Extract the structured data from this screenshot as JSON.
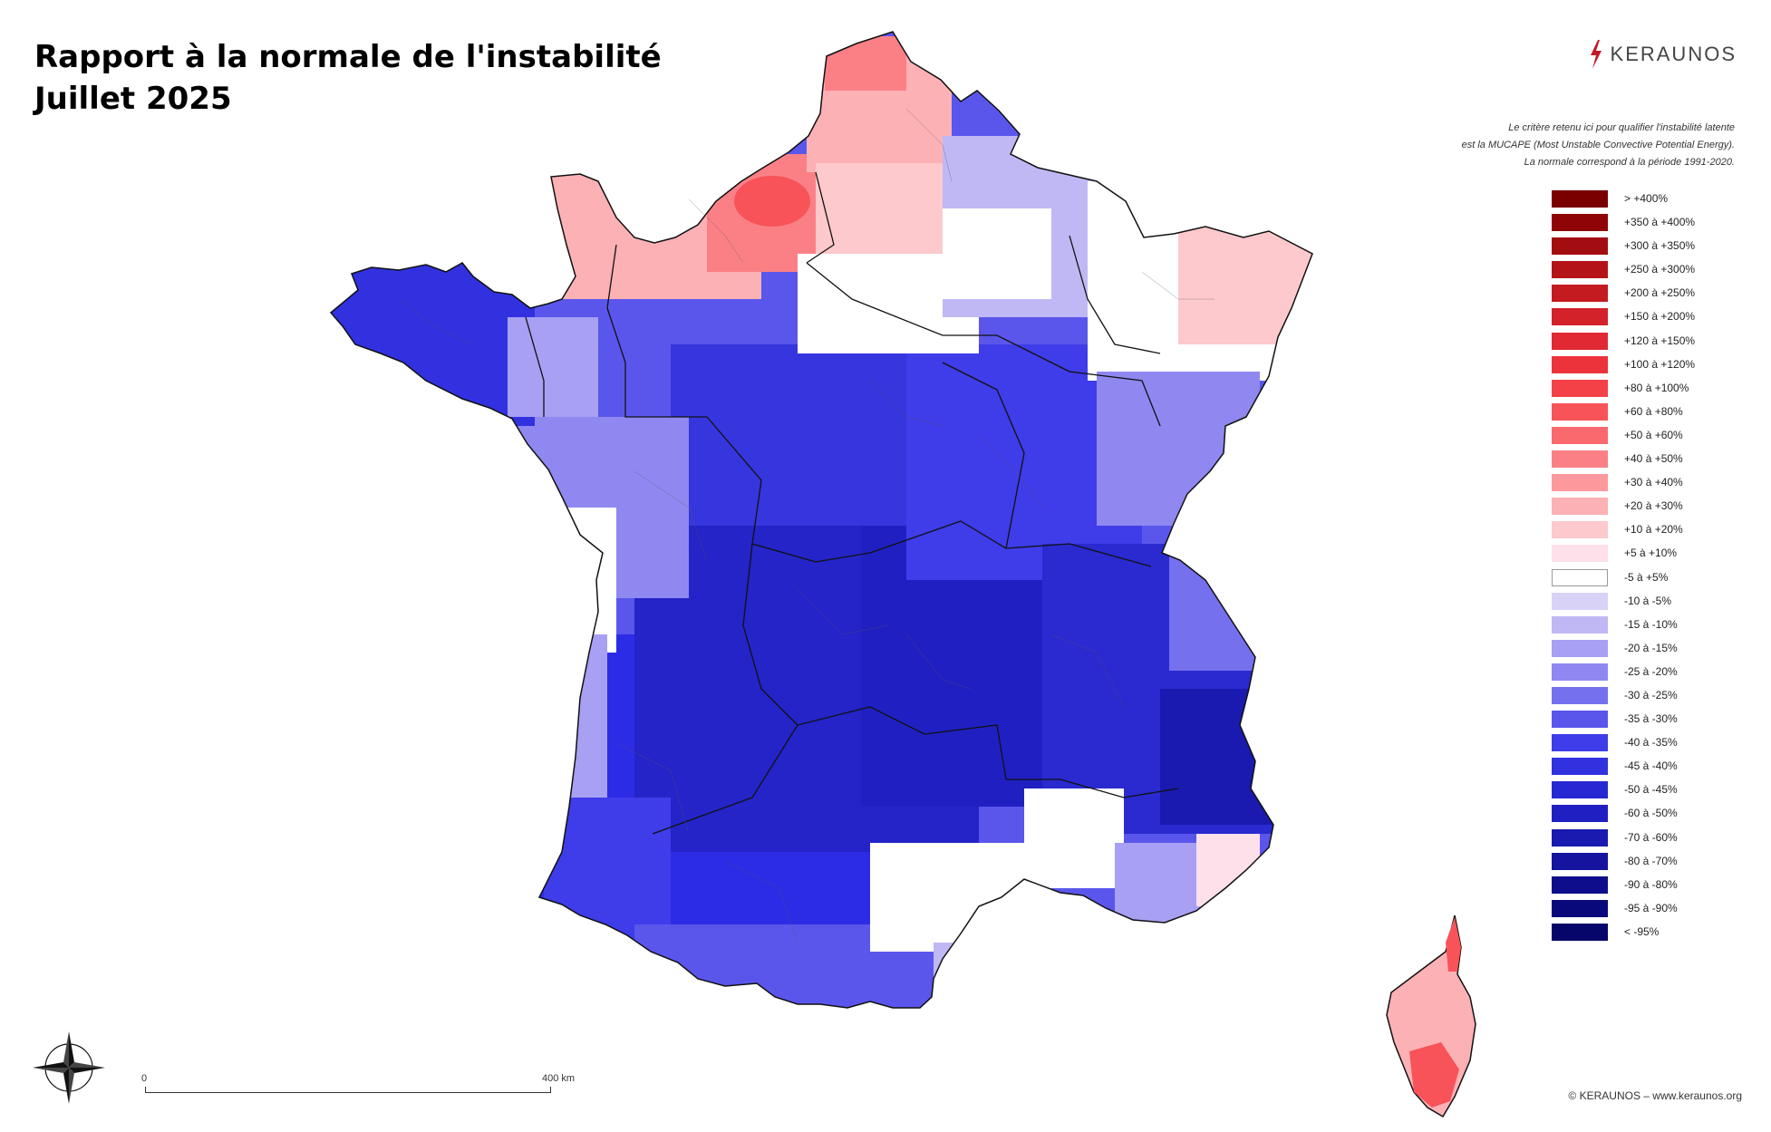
{
  "title": {
    "line1": "Rapport à la normale de l'instabilité",
    "line2": "Juillet 2025"
  },
  "logo": {
    "text": "KERAUNOS",
    "icon": "lightning-bolt-icon",
    "color": "#c3182b"
  },
  "note": {
    "line1": "Le critère retenu ici pour qualifier l'instabilité latente",
    "line2": "est la MUCAPE (Most Unstable Convective Potential Energy).",
    "line3": "La normale correspond à la période 1991-2020."
  },
  "legend": [
    {
      "label": "> +400%",
      "color": "#7a0000"
    },
    {
      "label": "+350 à +400%",
      "color": "#8f0407"
    },
    {
      "label": "+300 à +350%",
      "color": "#a30c10"
    },
    {
      "label": "+250 à +300%",
      "color": "#b41418"
    },
    {
      "label": "+200 à +250%",
      "color": "#c41b21"
    },
    {
      "label": "+150 à +200%",
      "color": "#d3222a"
    },
    {
      "label": "+120 à +150%",
      "color": "#e02932"
    },
    {
      "label": "+100 à +120%",
      "color": "#ec323b"
    },
    {
      "label": "+80 à +100%",
      "color": "#f44148"
    },
    {
      "label": "+60 à +80%",
      "color": "#f75359"
    },
    {
      "label": "+50 à +60%",
      "color": "#f9696e"
    },
    {
      "label": "+40 à +50%",
      "color": "#fa8086"
    },
    {
      "label": "+30 à +40%",
      "color": "#fb999d"
    },
    {
      "label": "+20 à +30%",
      "color": "#fcb1b5"
    },
    {
      "label": "+10 à +20%",
      "color": "#fdc9cd"
    },
    {
      "label": "+5 à +10%",
      "color": "#fde0ea"
    },
    {
      "label": "-5 à +5%",
      "color": "#ffffff"
    },
    {
      "label": "-10 à -5%",
      "color": "#d9d2f7"
    },
    {
      "label": "-15 à -10%",
      "color": "#c0b8f5"
    },
    {
      "label": "-20 à -15%",
      "color": "#a8a0f3"
    },
    {
      "label": "-25 à -20%",
      "color": "#8f88f1"
    },
    {
      "label": "-30 à -25%",
      "color": "#7470ee"
    },
    {
      "label": "-35 à -30%",
      "color": "#5a56ec"
    },
    {
      "label": "-40 à -35%",
      "color": "#3f3ce9"
    },
    {
      "label": "-45 à -40%",
      "color": "#3131e0"
    },
    {
      "label": "-50 à -45%",
      "color": "#2828d2"
    },
    {
      "label": "-60 à -50%",
      "color": "#2020c2"
    },
    {
      "label": "-70 à -60%",
      "color": "#1a1ab0"
    },
    {
      "label": "-80 à -70%",
      "color": "#14149e"
    },
    {
      "label": "-90 à -80%",
      "color": "#0e0e8c"
    },
    {
      "label": "-95 à -90%",
      "color": "#09097c"
    },
    {
      "label": "< -95%",
      "color": "#05056a"
    }
  ],
  "scale": {
    "start": "0",
    "end": "400 km"
  },
  "compass": {
    "icon": "compass-rose-icon"
  },
  "copyright": "© KERAUNOS – www.keraunos.org"
}
